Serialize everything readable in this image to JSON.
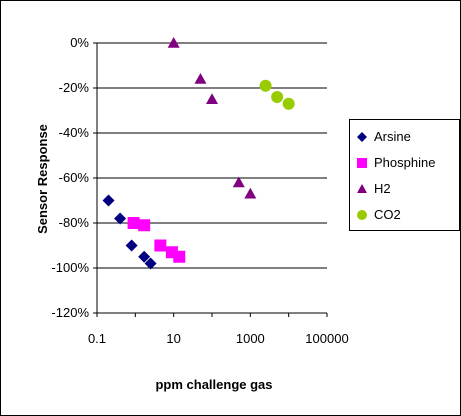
{
  "chart_data": {
    "type": "scatter",
    "title": "",
    "xlabel": "ppm challenge gas",
    "ylabel": "Sensor Response",
    "x_scale": "log",
    "xlim": [
      0.1,
      100000
    ],
    "ylim": [
      -120,
      0
    ],
    "x_ticks": [
      0.1,
      10,
      1000,
      100000
    ],
    "x_tick_labels": [
      "0.1",
      "10",
      "1000",
      "100000"
    ],
    "y_ticks": [
      0,
      -20,
      -40,
      -60,
      -80,
      -100,
      -120
    ],
    "y_tick_labels": [
      "0%",
      "-20%",
      "-40%",
      "-60%",
      "-80%",
      "-100%",
      "-120%"
    ],
    "grid": "horizontal",
    "legend_position": "right",
    "series": [
      {
        "name": "Arsine",
        "marker": "diamond",
        "color": "#000080",
        "points": [
          {
            "x": 0.2,
            "y": -70
          },
          {
            "x": 0.4,
            "y": -78
          },
          {
            "x": 0.8,
            "y": -90
          },
          {
            "x": 1.7,
            "y": -95
          },
          {
            "x": 2.5,
            "y": -98
          }
        ]
      },
      {
        "name": "Phosphine",
        "marker": "square",
        "color": "#ff00ff",
        "points": [
          {
            "x": 0.9,
            "y": -80
          },
          {
            "x": 1.7,
            "y": -81
          },
          {
            "x": 4.5,
            "y": -90
          },
          {
            "x": 9,
            "y": -93
          },
          {
            "x": 14,
            "y": -95
          }
        ]
      },
      {
        "name": "H2",
        "marker": "triangle",
        "color": "#800080",
        "points": [
          {
            "x": 10,
            "y": 0
          },
          {
            "x": 50,
            "y": -16
          },
          {
            "x": 100,
            "y": -25
          },
          {
            "x": 500,
            "y": -62
          },
          {
            "x": 1000,
            "y": -67
          }
        ]
      },
      {
        "name": "CO2",
        "marker": "circle",
        "color": "#99cc00",
        "points": [
          {
            "x": 2500,
            "y": -19
          },
          {
            "x": 5000,
            "y": -24
          },
          {
            "x": 10000,
            "y": -27
          }
        ]
      }
    ]
  }
}
